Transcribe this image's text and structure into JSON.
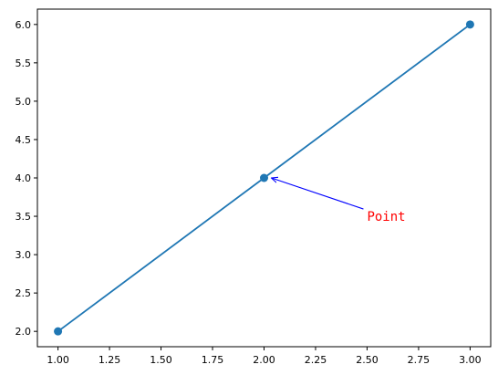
{
  "chart_data": {
    "type": "line",
    "title": "",
    "xlabel": "",
    "ylabel": "",
    "xlim": [
      0.9,
      3.1
    ],
    "ylim": [
      1.8,
      6.2
    ],
    "x_ticks": [
      "1.00",
      "1.25",
      "1.50",
      "1.75",
      "2.00",
      "2.25",
      "2.50",
      "2.75",
      "3.00"
    ],
    "y_ticks": [
      "2.0",
      "2.5",
      "3.0",
      "3.5",
      "4.0",
      "4.5",
      "5.0",
      "5.5",
      "6.0"
    ],
    "grid": false,
    "series": [
      {
        "x": [
          1,
          2,
          3
        ],
        "y": [
          2,
          4,
          6
        ],
        "color": "#1f77b4",
        "marker": "circle"
      }
    ],
    "annotations": [
      {
        "text": "Point",
        "xy": [
          2,
          4
        ],
        "xytext": [
          2.5,
          3.5
        ],
        "color": "#ff0000",
        "arrow_color": "#0000ff"
      }
    ]
  }
}
